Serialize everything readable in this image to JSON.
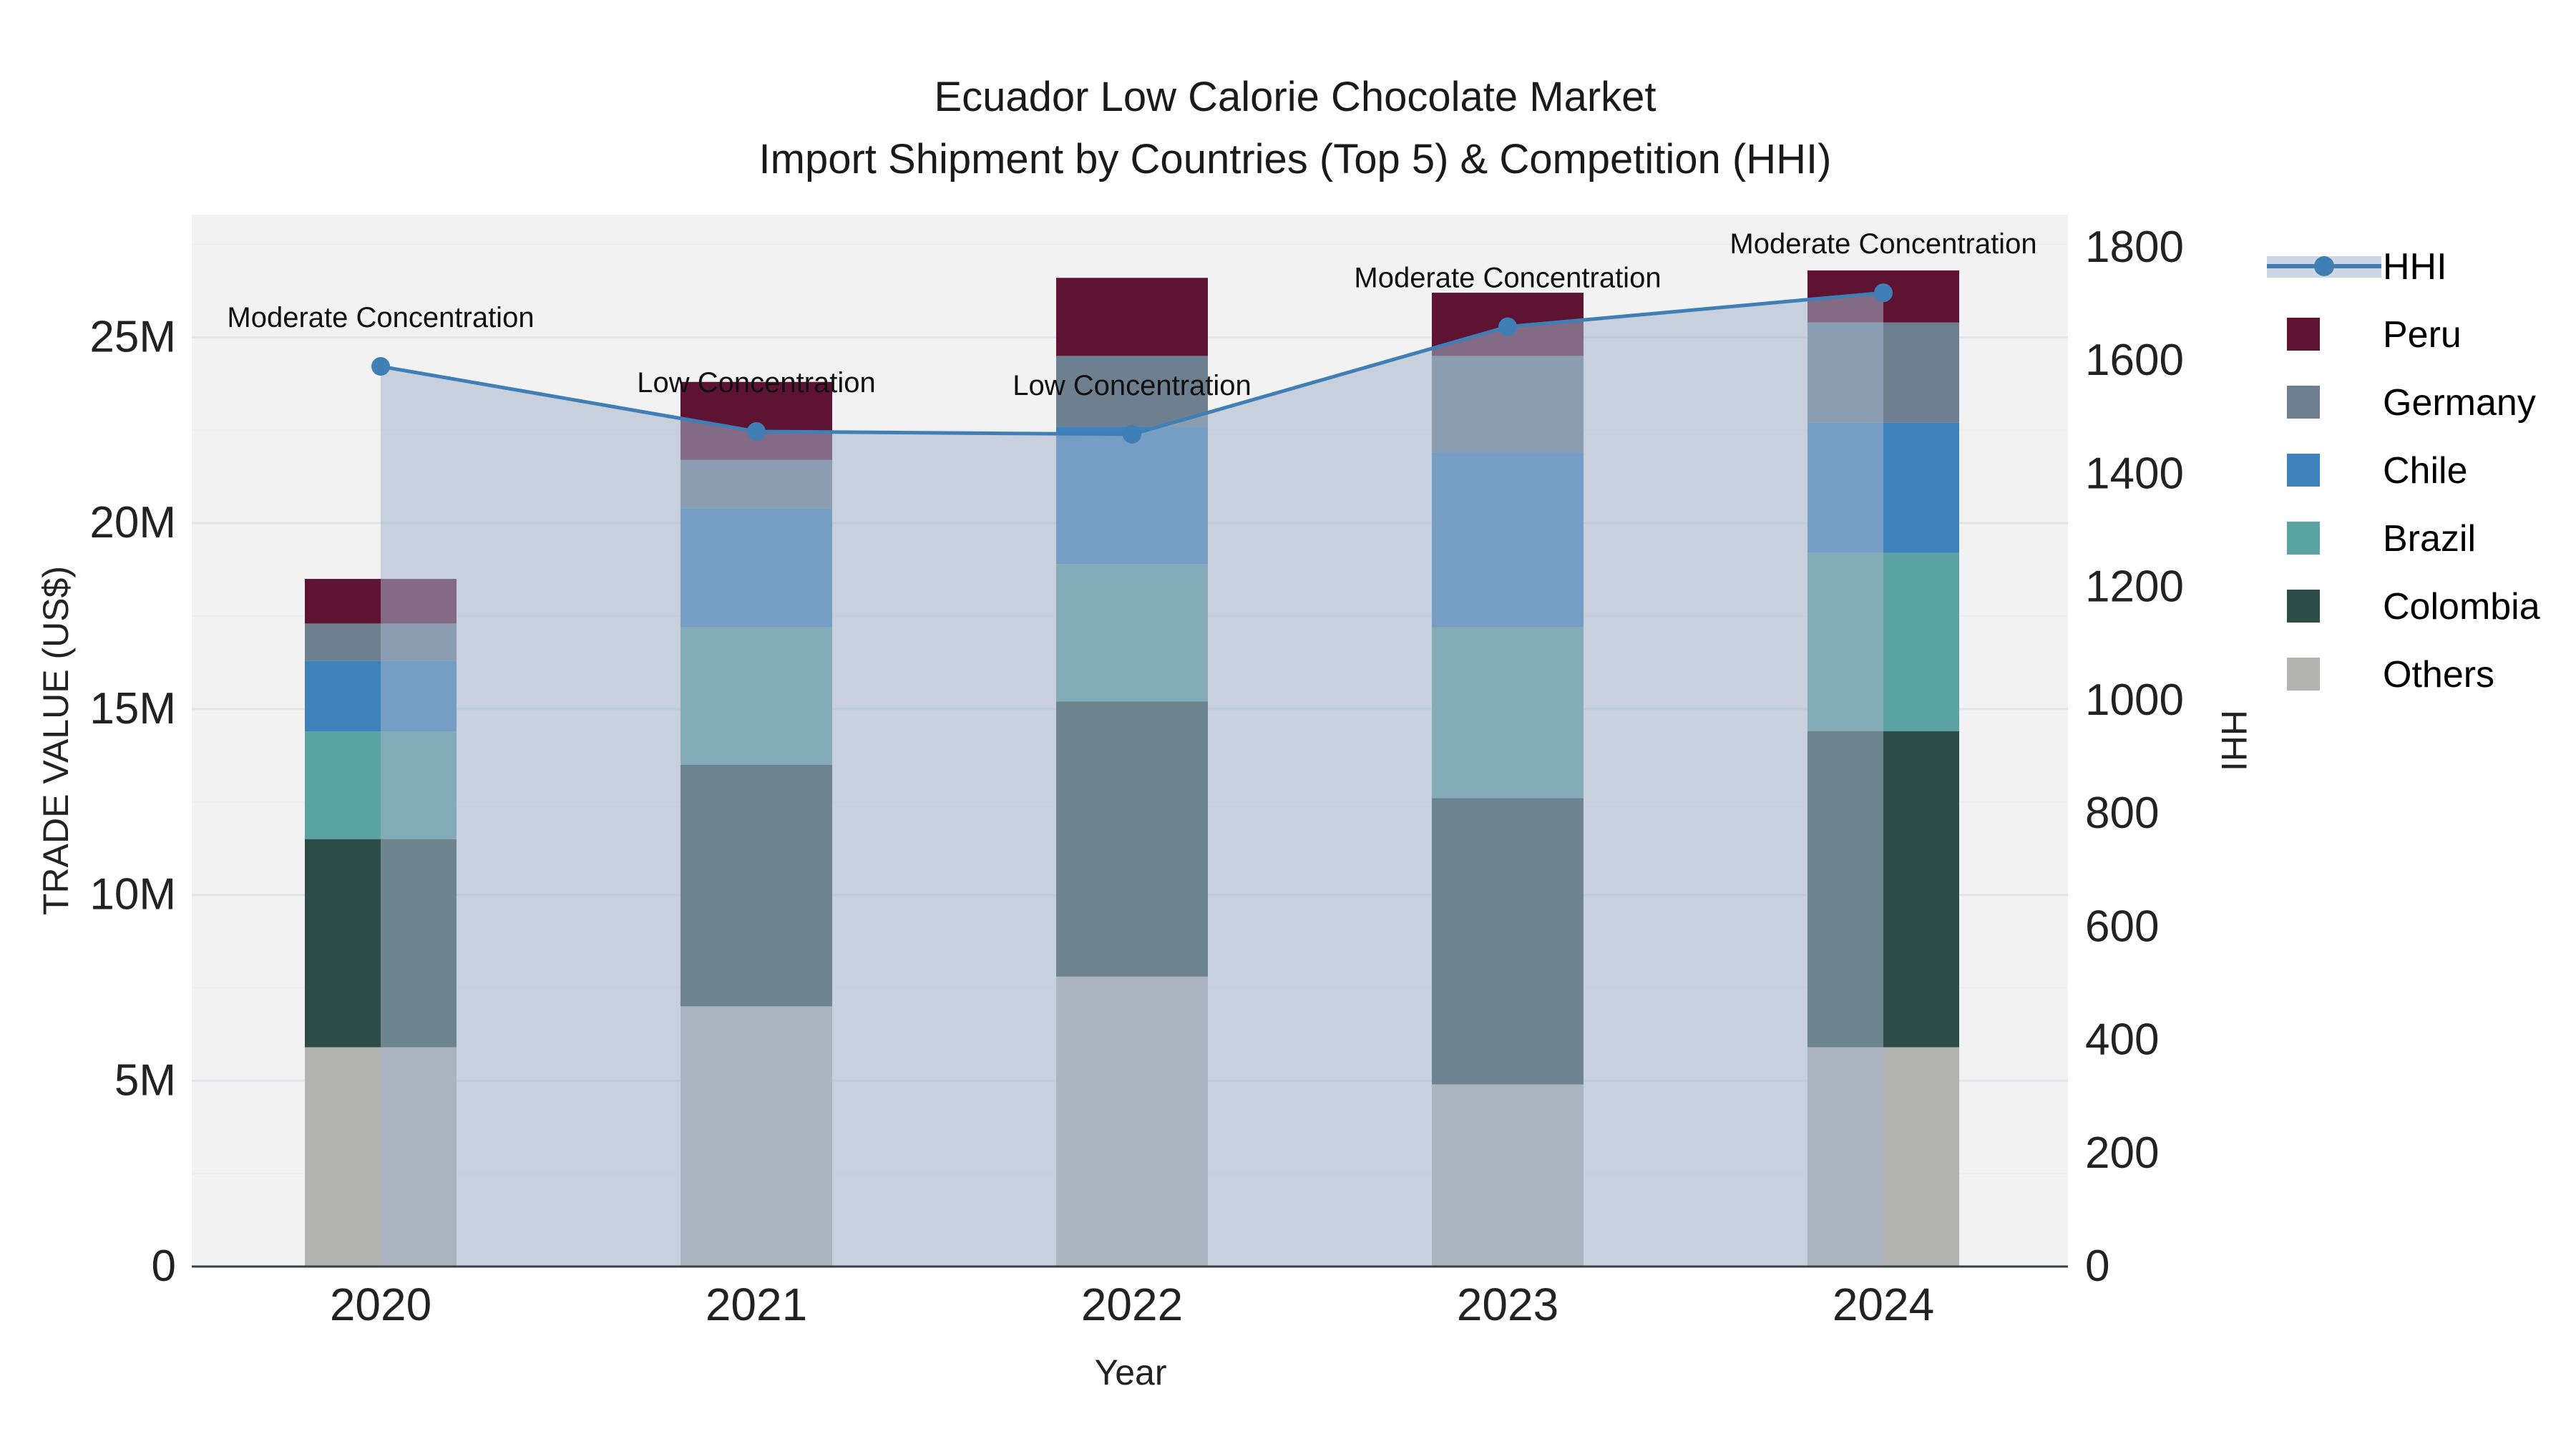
{
  "title": {
    "line1": "Ecuador Low Calorie Chocolate Market",
    "line2": "Import Shipment by Countries (Top 5) & Competition (HHI)"
  },
  "chart_data": {
    "type": "bar",
    "subtype": "stacked-bars-with-line",
    "categories": [
      "2020",
      "2021",
      "2022",
      "2023",
      "2024"
    ],
    "xlabel": "Year",
    "ylabel_left": "TRADE VALUE (US$)",
    "ylabel_right": "HHI",
    "y_left_ticks": [
      "0",
      "5M",
      "10M",
      "15M",
      "20M",
      "25M"
    ],
    "y_left_tick_values": [
      0,
      5,
      10,
      15,
      20,
      25
    ],
    "y_left_range": [
      0,
      28.3
    ],
    "y_right_ticks": [
      "0",
      "200",
      "400",
      "600",
      "800",
      "1000",
      "1200",
      "1400",
      "1600",
      "1800"
    ],
    "y_right_tick_values": [
      0,
      200,
      400,
      600,
      800,
      1000,
      1200,
      1400,
      1600,
      1800
    ],
    "y_right_range": [
      0,
      1858
    ],
    "grid": "on",
    "units": "millions USD",
    "series": [
      {
        "name": "Others",
        "color": "#b3b4b2",
        "values": [
          5.9,
          7.0,
          7.8,
          4.9,
          5.9
        ]
      },
      {
        "name": "Colombia",
        "color": "#2e4c48",
        "values": [
          5.6,
          6.5,
          7.4,
          7.7,
          8.5
        ]
      },
      {
        "name": "Brazil",
        "color": "#5ba3a2",
        "values": [
          2.9,
          3.7,
          3.7,
          4.6,
          4.8
        ]
      },
      {
        "name": "Chile",
        "color": "#3f81ba",
        "values": [
          1.9,
          3.2,
          3.7,
          4.7,
          3.5
        ]
      },
      {
        "name": "Germany",
        "color": "#6e8090",
        "values": [
          1.0,
          1.3,
          1.9,
          2.6,
          2.7
        ]
      },
      {
        "name": "Peru",
        "color": "#5e1332",
        "values": [
          1.2,
          2.1,
          2.1,
          1.7,
          1.4
        ]
      }
    ],
    "bar_totals": [
      18.5,
      23.8,
      26.6,
      26.2,
      26.8
    ],
    "line_series": {
      "name": "HHI",
      "color": "#3f7fb5",
      "area_fill": "rgba(164,180,202,0.55)",
      "values": [
        1590,
        1475,
        1470,
        1660,
        1720
      ]
    },
    "annotations": [
      {
        "year": "2020",
        "text": "Moderate Concentration"
      },
      {
        "year": "2021",
        "text": "Low Concentration"
      },
      {
        "year": "2022",
        "text": "Low Concentration"
      },
      {
        "year": "2023",
        "text": "Moderate Concentration"
      },
      {
        "year": "2024",
        "text": "Moderate Concentration"
      }
    ],
    "legend": {
      "position": "right",
      "entries": [
        "HHI",
        "Peru",
        "Germany",
        "Chile",
        "Brazil",
        "Colombia",
        "Others"
      ]
    },
    "colors": {
      "plot_background": "#f2f2f2",
      "grid_major": "#e3e6e9",
      "grid_minor": "#ededed",
      "axis_line": "#3a3f44",
      "tick_text": "#222222",
      "annotation_text": "#111111"
    }
  }
}
